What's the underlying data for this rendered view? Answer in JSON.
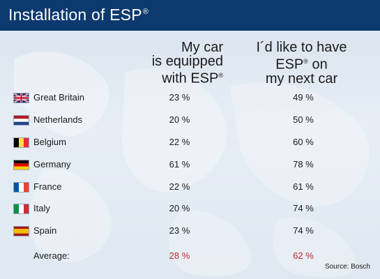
{
  "chart_data": {
    "type": "table",
    "title": "Installation of ESP",
    "title_mark": "®",
    "columns": [
      {
        "lines": [
          "My car",
          "is equipped",
          "with ESP"
        ],
        "marks": [
          "",
          "",
          "®"
        ]
      },
      {
        "lines": [
          "I´d like to have",
          "ESP",
          "my next car"
        ],
        "marks": [
          "",
          "® on",
          ""
        ]
      }
    ],
    "rows": [
      {
        "country": "Great Britain",
        "flag": "uk-flag-icon",
        "equipped": "23 %",
        "next_car": "49 %"
      },
      {
        "country": "Netherlands",
        "flag": "netherlands-flag-icon",
        "equipped": "20 %",
        "next_car": "50 %"
      },
      {
        "country": "Belgium",
        "flag": "belgium-flag-icon",
        "equipped": "22 %",
        "next_car": "60 %"
      },
      {
        "country": "Germany",
        "flag": "germany-flag-icon",
        "equipped": "61 %",
        "next_car": "78 %"
      },
      {
        "country": "France",
        "flag": "france-flag-icon",
        "equipped": "22 %",
        "next_car": "61 %"
      },
      {
        "country": "Italy",
        "flag": "italy-flag-icon",
        "equipped": "20 %",
        "next_car": "74 %"
      },
      {
        "country": "Spain",
        "flag": "spain-flag-icon",
        "equipped": "23 %",
        "next_car": "74 %"
      }
    ],
    "average": {
      "label": "Average:",
      "equipped": "28 %",
      "next_car": "62 %"
    },
    "source": "Source: Bosch"
  },
  "colors": {
    "header": "#0d3a6e",
    "average_values": "#c8242f",
    "background": "#e2eaf3"
  }
}
